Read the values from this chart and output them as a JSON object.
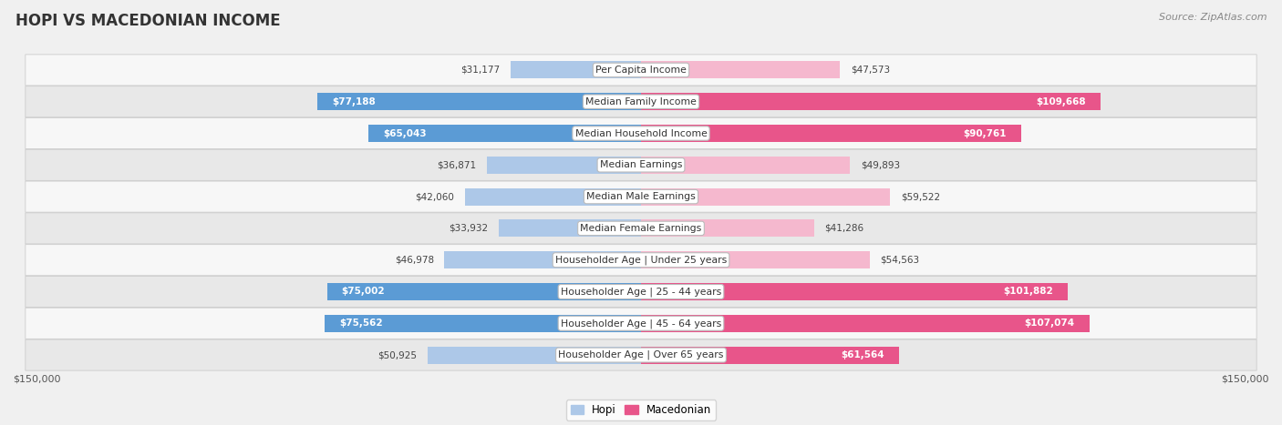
{
  "title": "HOPI VS MACEDONIAN INCOME",
  "source": "Source: ZipAtlas.com",
  "categories": [
    "Per Capita Income",
    "Median Family Income",
    "Median Household Income",
    "Median Earnings",
    "Median Male Earnings",
    "Median Female Earnings",
    "Householder Age | Under 25 years",
    "Householder Age | 25 - 44 years",
    "Householder Age | 45 - 64 years",
    "Householder Age | Over 65 years"
  ],
  "hopi_values": [
    31177,
    77188,
    65043,
    36871,
    42060,
    33932,
    46978,
    75002,
    75562,
    50925
  ],
  "macedonian_values": [
    47573,
    109668,
    90761,
    49893,
    59522,
    41286,
    54563,
    101882,
    107074,
    61564
  ],
  "hopi_labels": [
    "$31,177",
    "$77,188",
    "$65,043",
    "$36,871",
    "$42,060",
    "$33,932",
    "$46,978",
    "$75,002",
    "$75,562",
    "$50,925"
  ],
  "macedonian_labels": [
    "$47,573",
    "$109,668",
    "$90,761",
    "$49,893",
    "$59,522",
    "$41,286",
    "$54,563",
    "$101,882",
    "$107,074",
    "$61,564"
  ],
  "max_value": 150000,
  "hopi_color_low": "#adc8e8",
  "hopi_color_high": "#5b9bd5",
  "macedonian_color_low": "#f5b8ce",
  "macedonian_color_high": "#e8558a",
  "bg_color": "#f0f0f0",
  "row_even_color": "#f7f7f7",
  "row_odd_color": "#e8e8e8",
  "label_color_dark": "#444444",
  "label_color_white": "#ffffff",
  "title_color": "#333333",
  "legend_hopi_color": "#adc8e8",
  "legend_macedonian_color": "#e8558a",
  "hopi_thresh": 60000,
  "mac_thresh": 60000,
  "x_tick_label": "$150,000"
}
